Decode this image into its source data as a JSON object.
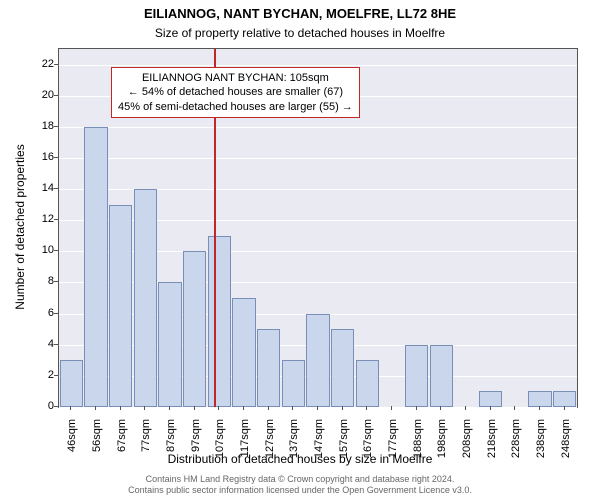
{
  "chart": {
    "type": "bar",
    "title_main": "EILIANNOG, NANT BYCHAN, MOELFRE, LL72 8HE",
    "title_sub": "Size of property relative to detached houses in Moelfre",
    "title_main_fontsize": 13,
    "title_sub_fontsize": 12,
    "background_color": "#ffffff",
    "plot_bg_color": "#eaeaf2",
    "grid_color": "#ffffff",
    "axis_line_color": "#555555",
    "bar_fill_color": "#c9d6ec",
    "bar_edge_color": "#7a8fb8",
    "bar_edge_width": 1,
    "bar_width": 0.95,
    "ylabel": "Number of detached properties",
    "xlabel": "Distribution of detached houses by size in Moelfre",
    "label_fontsize": 12,
    "tick_fontsize": 11,
    "ylim": [
      0,
      23
    ],
    "ytick_step": 2,
    "yticks": [
      0,
      2,
      4,
      6,
      8,
      10,
      12,
      14,
      16,
      18,
      20,
      22
    ],
    "categories": [
      "46sqm",
      "56sqm",
      "67sqm",
      "77sqm",
      "87sqm",
      "97sqm",
      "107sqm",
      "117sqm",
      "127sqm",
      "137sqm",
      "147sqm",
      "157sqm",
      "167sqm",
      "177sqm",
      "188sqm",
      "198sqm",
      "208sqm",
      "218sqm",
      "228sqm",
      "238sqm",
      "248sqm"
    ],
    "values": [
      3,
      18,
      13,
      14,
      8,
      10,
      11,
      7,
      5,
      3,
      6,
      5,
      3,
      0,
      4,
      4,
      0,
      1,
      0,
      1,
      1
    ],
    "reference_line": {
      "x_index": 5.8,
      "color": "#c02828",
      "width": 2
    },
    "annotation": {
      "lines": [
        "EILIANNOG NANT BYCHAN: 105sqm",
        "← 54% of detached houses are smaller (67)",
        "45% of semi-detached houses are larger (55) →"
      ],
      "border_color": "#c02828",
      "bg_color": "#ffffff",
      "fontsize": 11
    }
  },
  "footer": {
    "line1": "Contains HM Land Registry data © Crown copyright and database right 2024.",
    "line2": "Contains public sector information licensed under the Open Government Licence v3.0.",
    "fontsize": 9,
    "color": "#666666"
  }
}
